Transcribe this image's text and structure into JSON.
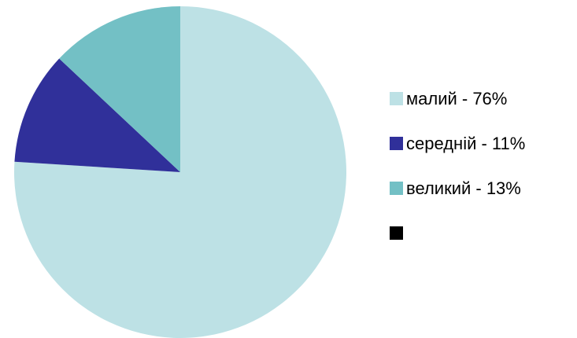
{
  "chart_data": {
    "type": "pie",
    "title": "",
    "legend_position": "right",
    "start_angle_deg": 0,
    "direction": "clockwise",
    "slices": [
      {
        "label": "малий - 76%",
        "value": 76,
        "color": "#BDE1E5"
      },
      {
        "label": "середній - 11%",
        "value": 11,
        "color": "#30309A"
      },
      {
        "label": "великий - 13%",
        "value": 13,
        "color": "#73C0C5"
      },
      {
        "label": "",
        "value": 0,
        "color": "#000000"
      }
    ]
  }
}
